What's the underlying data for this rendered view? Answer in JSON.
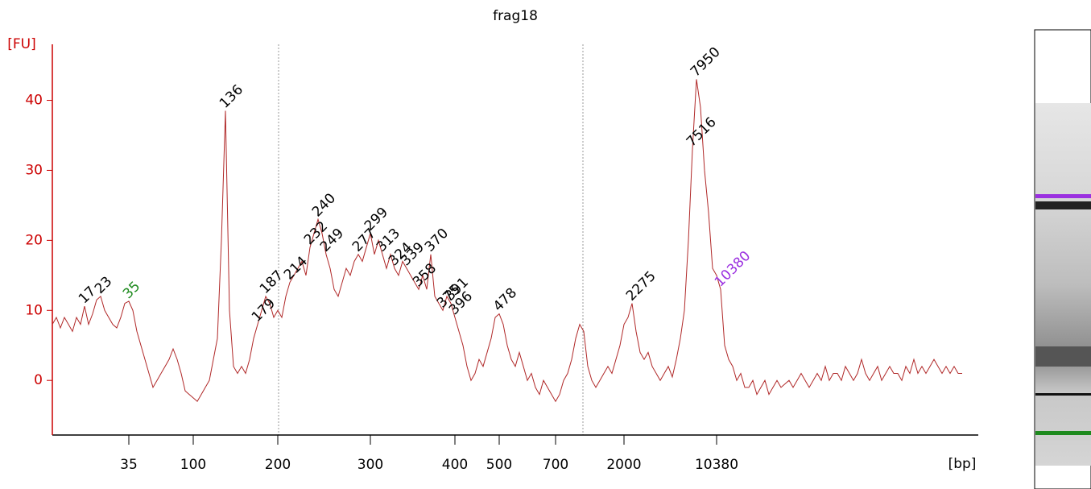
{
  "chart_data": {
    "type": "line",
    "title": "frag18",
    "ylabel": "[FU]",
    "xlabel": "[bp]",
    "ylim": [
      -7.8,
      48
    ],
    "yticks": [
      0,
      10,
      20,
      30,
      40
    ],
    "axis_color": "#cc0000",
    "categories": [
      null,
      null,
      null,
      null,
      null,
      null,
      null,
      null,
      null,
      null,
      null,
      null,
      null,
      null,
      null,
      null,
      null,
      null,
      null,
      "35",
      null,
      null,
      null,
      null,
      null,
      null,
      null,
      null,
      null,
      null,
      null,
      null,
      null,
      null,
      null,
      "100",
      null,
      null,
      null,
      null,
      null,
      null,
      null,
      null,
      null,
      null,
      null,
      null,
      null,
      null,
      null,
      null,
      null,
      null,
      null,
      null,
      "200",
      null,
      null,
      null,
      null,
      null,
      null,
      null,
      null,
      null,
      null,
      null,
      null,
      null,
      null,
      null,
      null,
      null,
      null,
      null,
      null,
      null,
      null,
      "300",
      null,
      null,
      null,
      null,
      null,
      null,
      null,
      null,
      null,
      null,
      null,
      null,
      null,
      null,
      null,
      null,
      null,
      null,
      null,
      null,
      "400",
      null,
      null,
      null,
      null,
      null,
      null,
      null,
      null,
      null,
      null,
      "500",
      null,
      null,
      null,
      null,
      null,
      null,
      null,
      null,
      null,
      null,
      null,
      null,
      null,
      "700",
      null,
      null,
      null,
      null,
      null,
      null,
      null,
      null,
      null,
      null,
      null,
      null,
      null,
      null,
      null,
      null,
      "2000",
      null,
      null,
      null,
      null,
      null,
      null,
      null,
      null,
      null,
      null,
      null,
      null,
      null,
      null,
      null,
      null,
      null,
      null,
      null,
      null,
      null,
      null,
      "10380",
      null,
      null,
      null,
      null,
      null,
      null,
      null,
      null,
      null,
      null,
      null,
      null,
      null,
      null,
      null,
      null,
      null,
      null,
      null,
      null,
      null,
      null,
      null,
      null,
      null,
      null,
      null,
      null,
      null,
      null,
      null,
      null,
      null,
      null,
      null,
      null,
      null,
      null,
      null,
      null,
      null,
      null,
      null,
      null,
      null,
      null,
      null,
      null,
      null,
      null,
      null,
      null,
      null,
      null,
      null,
      null,
      null,
      null,
      null,
      null,
      null
    ],
    "series": [
      {
        "color": "#b02828",
        "values": [
          8,
          9,
          7.5,
          9,
          8,
          7,
          9,
          8,
          10.6,
          8,
          9.5,
          11.5,
          12,
          10,
          9,
          8,
          7.5,
          9,
          11,
          11.3,
          10,
          7,
          5,
          3,
          1,
          -1,
          0,
          1,
          2,
          3,
          4.5,
          3,
          1,
          -1.5,
          -2,
          -2.5,
          -3,
          -2,
          -1,
          0,
          3,
          6,
          20,
          38.5,
          10,
          2,
          1,
          2,
          1,
          3,
          6,
          8,
          10,
          12,
          11,
          9,
          10,
          9,
          12,
          14,
          15,
          16,
          17,
          15,
          19,
          21,
          23,
          21,
          18,
          16,
          13,
          12,
          14,
          16,
          15,
          17,
          18,
          17,
          19,
          21,
          18,
          20,
          18,
          16,
          18,
          16,
          15,
          17,
          16,
          15,
          14,
          13,
          15,
          13,
          18,
          12,
          11,
          10,
          12,
          11,
          9,
          7,
          5,
          2,
          0,
          1,
          3,
          2,
          4,
          6,
          9,
          9.5,
          8,
          5,
          3,
          2,
          4,
          2,
          0,
          1,
          -1,
          -2,
          0,
          -1,
          -2,
          -3,
          -2,
          0,
          1,
          3,
          6,
          8,
          7,
          2,
          0,
          -1,
          0,
          1,
          2,
          1,
          3,
          5,
          8,
          9,
          11,
          7,
          4,
          3,
          4,
          2,
          1,
          0,
          1,
          2,
          0.5,
          3,
          6,
          10,
          20,
          33,
          43,
          39,
          30,
          24,
          16,
          15,
          13,
          5,
          3,
          2,
          0,
          1,
          -1,
          -1,
          0,
          -2,
          -1,
          0,
          -2,
          -1,
          0,
          -1,
          -0.5,
          0,
          -1,
          0,
          1,
          0,
          -1,
          0,
          1,
          0,
          2,
          0,
          1,
          1,
          0,
          2,
          1,
          0,
          1,
          3,
          1,
          0,
          1,
          2,
          0,
          1,
          2,
          1,
          1,
          0,
          2,
          1,
          3,
          1,
          2,
          1,
          2,
          3,
          2,
          1,
          2,
          1,
          2,
          1,
          1
        ]
      }
    ],
    "peak_labels": [
      null,
      null,
      null,
      null,
      null,
      null,
      null,
      null,
      "17",
      null,
      null,
      null,
      "23",
      null,
      null,
      null,
      null,
      null,
      null,
      {
        "label": "35",
        "color": "#1e8a1e"
      },
      null,
      null,
      null,
      null,
      null,
      null,
      null,
      null,
      null,
      null,
      null,
      null,
      null,
      null,
      null,
      null,
      null,
      null,
      null,
      null,
      null,
      null,
      null,
      "136",
      null,
      null,
      null,
      null,
      null,
      null,
      null,
      "179",
      null,
      "187",
      null,
      null,
      null,
      null,
      null,
      "214",
      null,
      null,
      null,
      null,
      "232",
      null,
      "240",
      null,
      "249",
      null,
      null,
      null,
      null,
      null,
      null,
      null,
      "277",
      null,
      null,
      "299",
      null,
      null,
      "313",
      null,
      null,
      "324",
      null,
      null,
      "339",
      null,
      null,
      "358",
      null,
      null,
      "370",
      null,
      null,
      "375",
      null,
      "391",
      "396",
      null,
      null,
      null,
      null,
      null,
      null,
      null,
      null,
      null,
      null,
      "478",
      null,
      null,
      null,
      null,
      null,
      null,
      null,
      null,
      null,
      null,
      null,
      null,
      null,
      null,
      null,
      null,
      null,
      null,
      null,
      null,
      null,
      null,
      null,
      null,
      null,
      null,
      null,
      null,
      null,
      null,
      null,
      null,
      "2275",
      null,
      null,
      null,
      null,
      null,
      null,
      null,
      null,
      null,
      null,
      null,
      null,
      null,
      null,
      "7516",
      "7950",
      null,
      null,
      null,
      null,
      null,
      {
        "label": "10380",
        "color": "#9b30e0"
      },
      null,
      null,
      null,
      null,
      null,
      null,
      null,
      null,
      null,
      null,
      null,
      null,
      null,
      null,
      null,
      null,
      null,
      null,
      null,
      null,
      null,
      null,
      null,
      null,
      null,
      null,
      null,
      null,
      null,
      null,
      null,
      null,
      null,
      null,
      null,
      null,
      null,
      null,
      null,
      null,
      null,
      null,
      null,
      null,
      null,
      null,
      null,
      null,
      null,
      null,
      null,
      null,
      null,
      null,
      null,
      null,
      null,
      null,
      null,
      null
    ]
  }
}
